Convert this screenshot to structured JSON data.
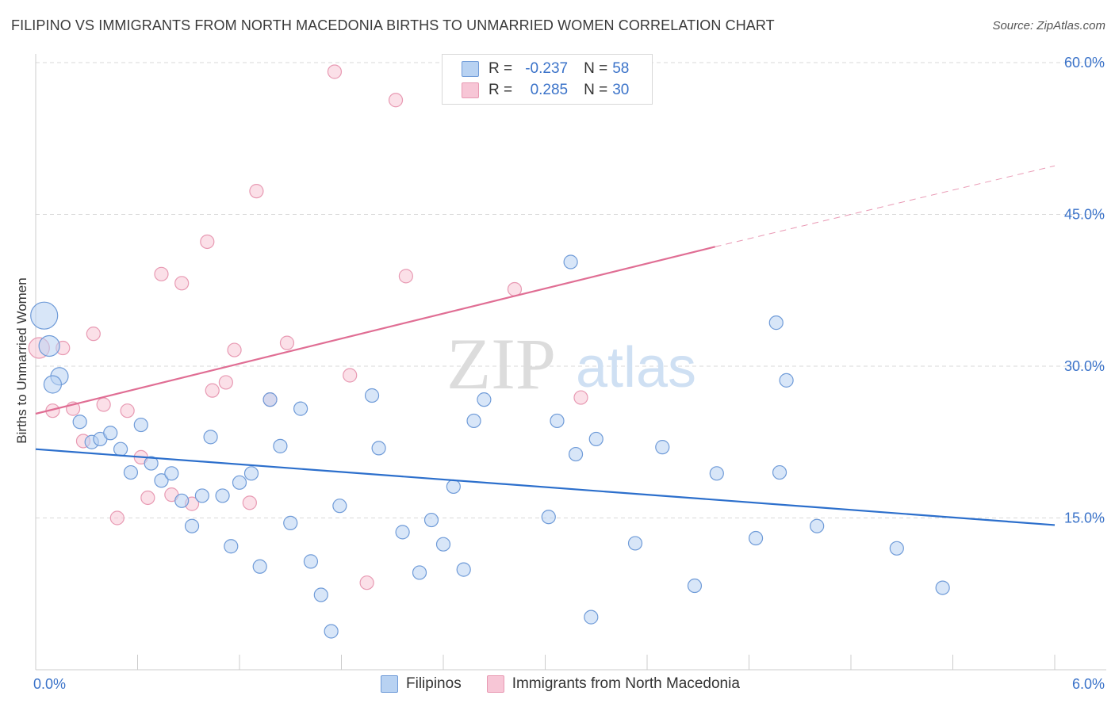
{
  "title": "FILIPINO VS IMMIGRANTS FROM NORTH MACEDONIA BIRTHS TO UNMARRIED WOMEN CORRELATION CHART",
  "source": "Source: ZipAtlas.com",
  "watermark": {
    "zip": "ZIP",
    "atlas": "atlas"
  },
  "colors": {
    "blue_fill": "#b8d2f2",
    "blue_stroke": "#6f9bd8",
    "blue_line": "#2c6fcc",
    "pink_fill": "#f7c6d6",
    "pink_stroke": "#e89ab3",
    "pink_line": "#e06e94",
    "axis_text": "#3b73c9",
    "grid": "#d9d9d9"
  },
  "legend": {
    "r_label": "R =",
    "n_label": "N =",
    "rows": [
      {
        "series": "Filipinos",
        "r": "-0.237",
        "n": "58"
      },
      {
        "series": "Immigrants from North Macedonia",
        "r": "0.285",
        "n": "30"
      }
    ]
  },
  "chart_data": {
    "type": "scatter",
    "title": "FILIPINO VS IMMIGRANTS FROM NORTH MACEDONIA BIRTHS TO UNMARRIED WOMEN CORRELATION CHART",
    "xlabel": "",
    "ylabel": "Births to Unmarried Women",
    "xlim": [
      0,
      6
    ],
    "ylim": [
      0,
      60
    ],
    "x_tick_labels": [
      "0.0%",
      "6.0%"
    ],
    "y_ticks": [
      15,
      30,
      45,
      60
    ],
    "y_tick_labels": [
      "15.0%",
      "30.0%",
      "45.0%",
      "60.0%"
    ],
    "grid": true,
    "series": [
      {
        "name": "Filipinos",
        "trend": {
          "x": [
            0,
            6
          ],
          "y": [
            21.8,
            14.3
          ],
          "dashed_from": null
        },
        "points": [
          {
            "x": 0.05,
            "y": 35.0,
            "size": "xl"
          },
          {
            "x": 0.08,
            "y": 32.0,
            "size": "l"
          },
          {
            "x": 0.14,
            "y": 29.0,
            "size": "m"
          },
          {
            "x": 0.1,
            "y": 28.2,
            "size": "m"
          },
          {
            "x": 0.26,
            "y": 24.5
          },
          {
            "x": 0.33,
            "y": 22.5
          },
          {
            "x": 0.38,
            "y": 22.8
          },
          {
            "x": 0.44,
            "y": 23.4
          },
          {
            "x": 0.5,
            "y": 21.8
          },
          {
            "x": 0.56,
            "y": 19.5
          },
          {
            "x": 0.62,
            "y": 24.2
          },
          {
            "x": 0.68,
            "y": 20.4
          },
          {
            "x": 0.74,
            "y": 18.7
          },
          {
            "x": 0.8,
            "y": 19.4
          },
          {
            "x": 0.86,
            "y": 16.7
          },
          {
            "x": 0.92,
            "y": 14.2
          },
          {
            "x": 0.98,
            "y": 17.2
          },
          {
            "x": 1.03,
            "y": 23.0
          },
          {
            "x": 1.1,
            "y": 17.2
          },
          {
            "x": 1.15,
            "y": 12.2
          },
          {
            "x": 1.2,
            "y": 18.5
          },
          {
            "x": 1.27,
            "y": 19.4
          },
          {
            "x": 1.32,
            "y": 10.2
          },
          {
            "x": 1.38,
            "y": 26.7
          },
          {
            "x": 1.44,
            "y": 22.1
          },
          {
            "x": 1.5,
            "y": 14.5
          },
          {
            "x": 1.56,
            "y": 25.8
          },
          {
            "x": 1.62,
            "y": 10.7
          },
          {
            "x": 1.68,
            "y": 7.4
          },
          {
            "x": 1.74,
            "y": 3.8
          },
          {
            "x": 1.79,
            "y": 16.2
          },
          {
            "x": 1.98,
            "y": 27.1
          },
          {
            "x": 2.02,
            "y": 21.9
          },
          {
            "x": 2.16,
            "y": 13.6
          },
          {
            "x": 2.26,
            "y": 9.6
          },
          {
            "x": 2.33,
            "y": 14.8
          },
          {
            "x": 2.4,
            "y": 12.4
          },
          {
            "x": 2.46,
            "y": 18.1
          },
          {
            "x": 2.52,
            "y": 9.9
          },
          {
            "x": 2.58,
            "y": 24.6
          },
          {
            "x": 2.64,
            "y": 26.7
          },
          {
            "x": 3.02,
            "y": 15.1
          },
          {
            "x": 3.07,
            "y": 24.6
          },
          {
            "x": 3.15,
            "y": 40.3
          },
          {
            "x": 3.18,
            "y": 21.3
          },
          {
            "x": 3.27,
            "y": 5.2
          },
          {
            "x": 3.3,
            "y": 22.8
          },
          {
            "x": 3.53,
            "y": 12.5
          },
          {
            "x": 3.69,
            "y": 22.0
          },
          {
            "x": 3.88,
            "y": 8.3
          },
          {
            "x": 4.01,
            "y": 19.4
          },
          {
            "x": 4.24,
            "y": 13.0
          },
          {
            "x": 4.36,
            "y": 34.3
          },
          {
            "x": 4.38,
            "y": 19.5
          },
          {
            "x": 4.42,
            "y": 28.6
          },
          {
            "x": 4.6,
            "y": 14.2
          },
          {
            "x": 5.07,
            "y": 12.0
          },
          {
            "x": 5.34,
            "y": 8.1
          }
        ]
      },
      {
        "name": "Immigrants from North Macedonia",
        "trend": {
          "x": [
            0,
            4.0
          ],
          "y": [
            25.3,
            41.8
          ],
          "dashed_to": [
            6,
            49.8
          ]
        },
        "points": [
          {
            "x": 0.02,
            "y": 31.8,
            "size": "l"
          },
          {
            "x": 0.1,
            "y": 25.6
          },
          {
            "x": 0.16,
            "y": 31.8
          },
          {
            "x": 0.22,
            "y": 25.8
          },
          {
            "x": 0.28,
            "y": 22.6
          },
          {
            "x": 0.34,
            "y": 33.2
          },
          {
            "x": 0.4,
            "y": 26.2
          },
          {
            "x": 0.48,
            "y": 15.0
          },
          {
            "x": 0.54,
            "y": 25.6
          },
          {
            "x": 0.62,
            "y": 21.0
          },
          {
            "x": 0.66,
            "y": 17.0
          },
          {
            "x": 0.74,
            "y": 39.1
          },
          {
            "x": 0.8,
            "y": 17.3
          },
          {
            "x": 0.86,
            "y": 38.2
          },
          {
            "x": 0.92,
            "y": 16.4
          },
          {
            "x": 1.01,
            "y": 42.3
          },
          {
            "x": 1.04,
            "y": 27.6
          },
          {
            "x": 1.12,
            "y": 28.4
          },
          {
            "x": 1.17,
            "y": 31.6
          },
          {
            "x": 1.26,
            "y": 16.5
          },
          {
            "x": 1.3,
            "y": 47.3
          },
          {
            "x": 1.38,
            "y": 26.7
          },
          {
            "x": 1.48,
            "y": 32.3
          },
          {
            "x": 1.76,
            "y": 59.1
          },
          {
            "x": 1.85,
            "y": 29.1
          },
          {
            "x": 1.95,
            "y": 8.6
          },
          {
            "x": 2.12,
            "y": 56.3
          },
          {
            "x": 2.18,
            "y": 38.9
          },
          {
            "x": 2.82,
            "y": 37.6
          },
          {
            "x": 3.21,
            "y": 26.9
          }
        ]
      }
    ]
  }
}
